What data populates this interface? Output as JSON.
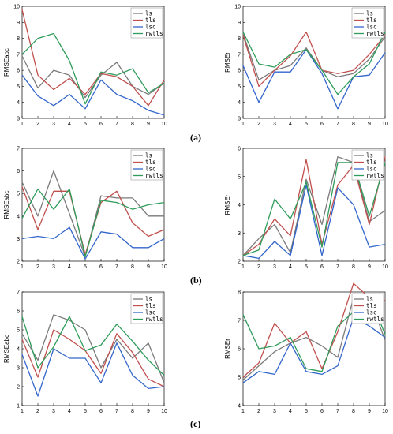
{
  "colors": {
    "ls": "#7a7a7a",
    "tls": "#c0504d",
    "lsc": "#3366cc",
    "rwtls": "#2e9c5a"
  },
  "legend_placement": "top-right",
  "panel_labels": [
    "(a)",
    "(b)",
    "(c)"
  ],
  "chart_data": [
    {
      "type": "line",
      "x": [
        1,
        2,
        3,
        4,
        5,
        6,
        7,
        8,
        9,
        10
      ],
      "ylabel": "RMSEabc",
      "ylim": [
        3,
        10
      ],
      "yticks": [
        3,
        4,
        5,
        6,
        7,
        8,
        9,
        10
      ],
      "series": [
        {
          "name": "ls",
          "values": [
            6.9,
            4.9,
            6.0,
            5.7,
            4.3,
            5.7,
            6.5,
            5.0,
            4.5,
            5.2
          ]
        },
        {
          "name": "tls",
          "values": [
            9.8,
            5.7,
            4.8,
            5.5,
            4.5,
            5.8,
            5.6,
            5.0,
            3.8,
            5.4
          ]
        },
        {
          "name": "lsc",
          "values": [
            5.7,
            4.4,
            3.8,
            4.5,
            3.6,
            5.4,
            4.5,
            4.1,
            3.5,
            3.2
          ]
        },
        {
          "name": "rwtls",
          "values": [
            7.0,
            8.0,
            8.3,
            6.6,
            3.9,
            5.9,
            5.7,
            6.1,
            4.6,
            5.2
          ]
        }
      ]
    },
    {
      "type": "line",
      "x": [
        1,
        2,
        3,
        4,
        5,
        6,
        7,
        8,
        9,
        10
      ],
      "ylabel": "RMSEr",
      "ylim": [
        3,
        10
      ],
      "yticks": [
        3,
        4,
        5,
        6,
        7,
        8,
        9,
        10
      ],
      "series": [
        {
          "name": "ls",
          "values": [
            8.3,
            5.4,
            6.0,
            6.3,
            7.4,
            6.0,
            5.6,
            5.8,
            6.7,
            8.1
          ]
        },
        {
          "name": "tls",
          "values": [
            8.2,
            5.0,
            6.0,
            6.9,
            8.4,
            6.0,
            5.8,
            6.0,
            7.0,
            8.2
          ]
        },
        {
          "name": "lsc",
          "values": [
            6.3,
            4.0,
            5.9,
            5.9,
            7.3,
            5.8,
            3.6,
            5.6,
            5.7,
            7.1
          ]
        },
        {
          "name": "rwtls",
          "values": [
            8.4,
            6.4,
            6.2,
            7.0,
            7.3,
            6.0,
            4.5,
            5.6,
            6.4,
            8.4
          ]
        }
      ]
    },
    {
      "type": "line",
      "x": [
        1,
        2,
        3,
        4,
        5,
        6,
        7,
        8,
        9,
        10
      ],
      "ylabel": "RMSEabc",
      "ylim": [
        2,
        7
      ],
      "yticks": [
        2,
        3,
        4,
        5,
        6,
        7
      ],
      "series": [
        {
          "name": "ls",
          "values": [
            5.5,
            4.0,
            6.0,
            4.1,
            2.2,
            4.9,
            4.8,
            4.8,
            4.0,
            4.0
          ]
        },
        {
          "name": "tls",
          "values": [
            5.3,
            3.4,
            5.1,
            5.1,
            2.3,
            4.6,
            5.1,
            3.7,
            3.1,
            3.4
          ]
        },
        {
          "name": "lsc",
          "values": [
            3.0,
            3.1,
            3.0,
            3.5,
            2.1,
            3.3,
            3.2,
            2.6,
            2.6,
            3.0
          ]
        },
        {
          "name": "rwtls",
          "values": [
            3.9,
            5.2,
            4.3,
            5.2,
            2.2,
            4.7,
            4.6,
            4.3,
            4.5,
            4.6
          ]
        }
      ]
    },
    {
      "type": "line",
      "x": [
        1,
        2,
        3,
        4,
        5,
        6,
        7,
        8,
        9,
        10
      ],
      "ylabel": "RMSEr",
      "ylim": [
        2,
        6
      ],
      "yticks": [
        2,
        3,
        4,
        5,
        6
      ],
      "series": [
        {
          "name": "ls",
          "values": [
            2.2,
            2.8,
            3.3,
            2.3,
            4.9,
            3.3,
            5.7,
            5.5,
            3.4,
            3.8
          ]
        },
        {
          "name": "tls",
          "values": [
            2.2,
            2.6,
            3.5,
            2.9,
            5.6,
            2.6,
            4.7,
            5.4,
            3.3,
            5.7
          ]
        },
        {
          "name": "lsc",
          "values": [
            2.2,
            2.1,
            2.7,
            2.2,
            4.7,
            2.2,
            4.6,
            4.0,
            2.5,
            2.6
          ]
        },
        {
          "name": "rwtls",
          "values": [
            2.2,
            2.4,
            4.2,
            3.5,
            4.8,
            2.5,
            5.5,
            5.5,
            3.6,
            5.5
          ]
        }
      ]
    },
    {
      "type": "line",
      "x": [
        1,
        2,
        3,
        4,
        5,
        6,
        7,
        8,
        9,
        10
      ],
      "ylabel": "RMSEabc",
      "ylim": [
        1,
        7
      ],
      "yticks": [
        1,
        2,
        3,
        4,
        5,
        6,
        7
      ],
      "series": [
        {
          "name": "ls",
          "values": [
            4.8,
            3.4,
            5.8,
            5.5,
            5.0,
            3.0,
            4.5,
            3.5,
            4.3,
            2.2
          ]
        },
        {
          "name": "tls",
          "values": [
            4.5,
            2.5,
            5.0,
            4.5,
            3.9,
            2.7,
            4.8,
            3.8,
            2.4,
            2.0
          ]
        },
        {
          "name": "lsc",
          "values": [
            3.7,
            1.5,
            4.0,
            3.5,
            3.5,
            2.2,
            4.3,
            2.6,
            1.9,
            2.0
          ]
        },
        {
          "name": "rwtls",
          "values": [
            5.7,
            3.0,
            4.1,
            5.7,
            3.9,
            4.2,
            5.3,
            4.4,
            3.4,
            2.6
          ]
        }
      ]
    },
    {
      "type": "line",
      "x": [
        1,
        2,
        3,
        4,
        5,
        6,
        7,
        8,
        9,
        10
      ],
      "ylabel": "RMSEr",
      "ylim": [
        4,
        8
      ],
      "yticks": [
        4,
        5,
        6,
        7,
        8
      ],
      "series": [
        {
          "name": "ls",
          "values": [
            4.9,
            5.4,
            5.9,
            6.2,
            6.4,
            6.1,
            5.7,
            7.8,
            7.8,
            6.3
          ]
        },
        {
          "name": "tls",
          "values": [
            5.0,
            5.5,
            6.9,
            6.2,
            6.6,
            5.3,
            6.6,
            8.3,
            7.8,
            7.7
          ]
        },
        {
          "name": "lsc",
          "values": [
            4.8,
            5.2,
            5.1,
            6.2,
            5.2,
            5.1,
            5.4,
            7.1,
            6.8,
            6.4
          ]
        },
        {
          "name": "rwtls",
          "values": [
            7.2,
            6.0,
            6.1,
            6.4,
            5.3,
            5.2,
            6.8,
            7.3,
            7.9,
            6.5
          ]
        }
      ]
    }
  ]
}
